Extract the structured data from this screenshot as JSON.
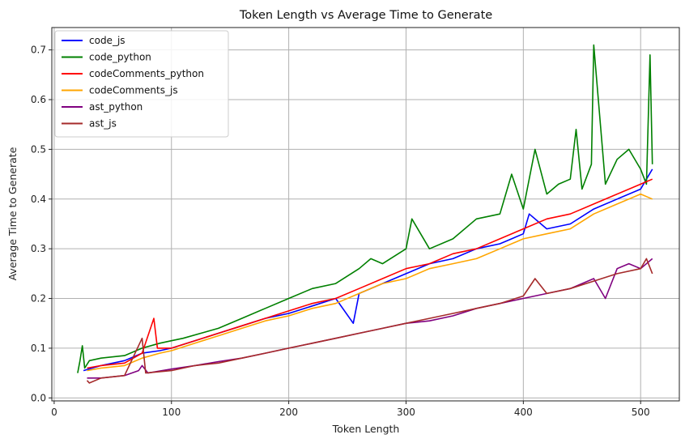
{
  "chart_data": {
    "type": "line",
    "title": "Token Length vs Average Time to Generate",
    "xlabel": "Token Length",
    "ylabel": "Average Time to Generate",
    "xlim": [
      -2,
      533
    ],
    "ylim": [
      -0.006,
      0.745
    ],
    "xticks": [
      0,
      100,
      200,
      300,
      400,
      500
    ],
    "yticks": [
      0.0,
      0.1,
      0.2,
      0.3,
      0.4,
      0.5,
      0.6,
      0.7
    ],
    "grid": true,
    "legend_position": "top-left",
    "series": [
      {
        "name": "code_js",
        "color": "#0000ff",
        "x": [
          25,
          40,
          60,
          75,
          90,
          100,
          120,
          140,
          160,
          180,
          200,
          220,
          240,
          255,
          260,
          280,
          300,
          320,
          340,
          360,
          380,
          400,
          405,
          420,
          440,
          460,
          480,
          500,
          505,
          510
        ],
        "y": [
          0.055,
          0.065,
          0.075,
          0.09,
          0.095,
          0.1,
          0.115,
          0.13,
          0.145,
          0.16,
          0.17,
          0.185,
          0.2,
          0.15,
          0.21,
          0.23,
          0.25,
          0.27,
          0.28,
          0.3,
          0.31,
          0.33,
          0.37,
          0.34,
          0.35,
          0.38,
          0.4,
          0.42,
          0.44,
          0.46
        ]
      },
      {
        "name": "code_python",
        "color": "#008000",
        "x": [
          20,
          22,
          24,
          26,
          30,
          40,
          60,
          75,
          90,
          100,
          110,
          125,
          140,
          160,
          180,
          200,
          220,
          240,
          260,
          270,
          280,
          300,
          305,
          320,
          340,
          360,
          380,
          390,
          400,
          410,
          420,
          430,
          440,
          445,
          450,
          458,
          460,
          470,
          480,
          490,
          500,
          505,
          508,
          510
        ],
        "y": [
          0.05,
          0.075,
          0.105,
          0.06,
          0.075,
          0.08,
          0.085,
          0.1,
          0.11,
          0.115,
          0.12,
          0.13,
          0.14,
          0.16,
          0.18,
          0.2,
          0.22,
          0.23,
          0.26,
          0.28,
          0.27,
          0.3,
          0.36,
          0.3,
          0.32,
          0.36,
          0.37,
          0.45,
          0.38,
          0.5,
          0.41,
          0.43,
          0.44,
          0.54,
          0.42,
          0.47,
          0.71,
          0.43,
          0.48,
          0.5,
          0.46,
          0.43,
          0.69,
          0.47
        ]
      },
      {
        "name": "codeComments_python",
        "color": "#ff0000",
        "x": [
          28,
          40,
          60,
          75,
          85,
          88,
          100,
          120,
          140,
          160,
          180,
          200,
          220,
          240,
          260,
          280,
          300,
          320,
          340,
          360,
          380,
          400,
          420,
          440,
          460,
          480,
          500,
          510
        ],
        "y": [
          0.06,
          0.065,
          0.07,
          0.09,
          0.16,
          0.1,
          0.1,
          0.115,
          0.13,
          0.145,
          0.16,
          0.175,
          0.19,
          0.2,
          0.22,
          0.24,
          0.26,
          0.27,
          0.29,
          0.3,
          0.32,
          0.34,
          0.36,
          0.37,
          0.39,
          0.41,
          0.43,
          0.44
        ]
      },
      {
        "name": "codeComments_js",
        "color": "#ffa500",
        "x": [
          28,
          40,
          60,
          75,
          90,
          100,
          120,
          140,
          160,
          180,
          200,
          220,
          240,
          260,
          280,
          300,
          320,
          340,
          360,
          380,
          400,
          420,
          440,
          460,
          480,
          500,
          510
        ],
        "y": [
          0.055,
          0.06,
          0.065,
          0.08,
          0.09,
          0.095,
          0.11,
          0.125,
          0.14,
          0.155,
          0.165,
          0.18,
          0.19,
          0.21,
          0.23,
          0.24,
          0.26,
          0.27,
          0.28,
          0.3,
          0.32,
          0.33,
          0.34,
          0.37,
          0.39,
          0.41,
          0.4
        ]
      },
      {
        "name": "ast_python",
        "color": "#800080",
        "x": [
          28,
          40,
          60,
          72,
          75,
          80,
          100,
          120,
          140,
          160,
          180,
          200,
          220,
          240,
          260,
          280,
          300,
          320,
          340,
          360,
          380,
          400,
          420,
          440,
          460,
          470,
          480,
          490,
          500,
          510
        ],
        "y": [
          0.04,
          0.04,
          0.045,
          0.055,
          0.065,
          0.05,
          0.058,
          0.065,
          0.073,
          0.08,
          0.09,
          0.1,
          0.11,
          0.12,
          0.13,
          0.14,
          0.15,
          0.155,
          0.165,
          0.18,
          0.19,
          0.2,
          0.21,
          0.22,
          0.24,
          0.2,
          0.26,
          0.27,
          0.26,
          0.28
        ]
      },
      {
        "name": "ast_js",
        "color": "#a52a2a",
        "x": [
          28,
          30,
          40,
          60,
          75,
          78,
          100,
          120,
          140,
          160,
          180,
          200,
          220,
          240,
          260,
          280,
          300,
          320,
          340,
          360,
          380,
          400,
          410,
          420,
          440,
          460,
          480,
          500,
          505,
          510
        ],
        "y": [
          0.035,
          0.03,
          0.04,
          0.045,
          0.12,
          0.05,
          0.055,
          0.065,
          0.07,
          0.08,
          0.09,
          0.1,
          0.11,
          0.12,
          0.13,
          0.14,
          0.15,
          0.16,
          0.17,
          0.18,
          0.19,
          0.205,
          0.24,
          0.21,
          0.22,
          0.235,
          0.25,
          0.26,
          0.28,
          0.25
        ]
      }
    ]
  }
}
